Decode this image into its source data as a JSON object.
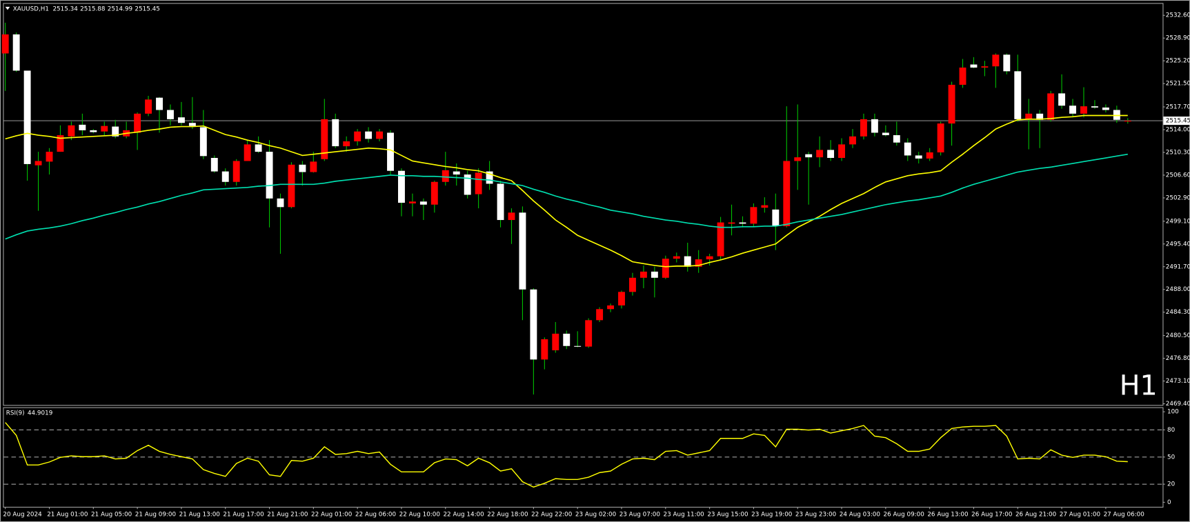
{
  "chart_data": {
    "type": "candlestick",
    "symbol": "XAUUSD,H1",
    "watermark": "H1",
    "watermark_color": "#ff0000",
    "up_color": "#ff0000",
    "down_color": "#ffffff",
    "wick_color": "#00c000",
    "price_line_color": "#b0b0b0",
    "categories": [
      "20 Aug 2024",
      null,
      null,
      null,
      "21 Aug 01:00",
      null,
      null,
      null,
      "21 Aug 05:00",
      null,
      null,
      null,
      "21 Aug 09:00",
      null,
      null,
      null,
      "21 Aug 13:00",
      null,
      null,
      null,
      "21 Aug 17:00",
      null,
      null,
      null,
      "21 Aug 21:00",
      null,
      null,
      null,
      "22 Aug 01:00",
      null,
      null,
      null,
      "22 Aug 06:00",
      null,
      null,
      null,
      "22 Aug 10:00",
      null,
      null,
      null,
      "22 Aug 14:00",
      null,
      null,
      null,
      "22 Aug 18:00",
      null,
      null,
      null,
      "22 Aug 22:00",
      null,
      null,
      null,
      "23 Aug 02:00",
      null,
      null,
      null,
      "23 Aug 07:00",
      null,
      null,
      null,
      "23 Aug 11:00",
      null,
      null,
      null,
      "23 Aug 15:00",
      null,
      null,
      null,
      "23 Aug 19:00",
      null,
      null,
      null,
      "23 Aug 23:00",
      null,
      null,
      null,
      "24 Aug 03:00",
      null,
      null,
      null,
      "26 Aug 09:00",
      null,
      null,
      null,
      "26 Aug 13:00",
      null,
      null,
      null,
      "26 Aug 17:00",
      null,
      null,
      null,
      "26 Aug 21:00",
      null,
      null,
      null,
      "27 Aug 01:00",
      null,
      null,
      null,
      "27 Aug 06:00",
      null,
      null
    ],
    "open": [
      2526.4,
      2529.5,
      2523.6,
      2508.2,
      2508.8,
      2510.4,
      2512.9,
      2514.8,
      2513.9,
      2513.7,
      2514.5,
      2512.9,
      2513.5,
      2516.6,
      2519.2,
      2517.2,
      2516.0,
      2515.1,
      2514.4,
      2509.4,
      2507.2,
      2505.5,
      2508.9,
      2511.6,
      2510.4,
      2502.8,
      2501.4,
      2508.3,
      2507.1,
      2509.2,
      2515.7,
      2511.3,
      2512.1,
      2513.7,
      2512.5,
      2513.5,
      2507.3,
      2502.0,
      2502.3,
      2501.8,
      2505.5,
      2507.2,
      2506.7,
      2503.5,
      2507.2,
      2505.2,
      2499.3,
      2500.5,
      2488.0,
      2476.6,
      2478.1,
      2480.8,
      2478.8,
      2478.7,
      2483.0,
      2484.8,
      2485.4,
      2487.6,
      2489.9,
      2490.9,
      2489.9,
      2493.0,
      2493.4,
      2491.7,
      2492.9,
      2493.4,
      2498.7,
      2498.9,
      2498.7,
      2501.3,
      2501.0,
      2498.3,
      2508.9,
      2510.0,
      2509.5,
      2510.7,
      2509.4,
      2511.6,
      2512.9,
      2515.7,
      2513.5,
      2513.1,
      2511.9,
      2509.8,
      2509.3,
      2510.3,
      2515.0,
      2521.3,
      2524.6,
      2524.1,
      2524.3,
      2526.2,
      2523.5,
      2515.7,
      2516.6,
      2515.6,
      2519.9,
      2517.9,
      2516.6,
      2517.8,
      2517.6,
      2517.2,
      2515.34
    ],
    "high": [
      2531.4,
      2529.8,
      2523.6,
      2510.4,
      2511.0,
      2514.7,
      2515.3,
      2516.6,
      2514.1,
      2515.3,
      2515.6,
      2515.3,
      2516.8,
      2519.5,
      2519.3,
      2518.1,
      2518.5,
      2519.3,
      2517.2,
      2509.8,
      2507.7,
      2509.2,
      2512.3,
      2512.9,
      2512.3,
      2503.6,
      2508.7,
      2508.9,
      2510.4,
      2519.0,
      2516.6,
      2512.9,
      2514.1,
      2514.4,
      2514.1,
      2513.9,
      2507.7,
      2503.6,
      2502.8,
      2505.7,
      2510.4,
      2508.5,
      2507.3,
      2507.7,
      2508.9,
      2505.7,
      2501.2,
      2501.5,
      2488.2,
      2480.2,
      2482.7,
      2481.3,
      2481.2,
      2483.3,
      2485.1,
      2485.7,
      2487.8,
      2490.7,
      2491.9,
      2491.7,
      2493.5,
      2494.0,
      2495.6,
      2494.4,
      2493.8,
      2499.8,
      2501.8,
      2499.9,
      2502.0,
      2503.0,
      2503.6,
      2517.8,
      2518.1,
      2510.4,
      2512.9,
      2512.3,
      2512.6,
      2514.1,
      2516.6,
      2516.6,
      2514.7,
      2515.3,
      2512.6,
      2510.4,
      2511.0,
      2515.3,
      2521.8,
      2525.5,
      2525.8,
      2525.2,
      2526.4,
      2526.4,
      2526.2,
      2519.0,
      2517.2,
      2520.3,
      2523.0,
      2519.0,
      2520.9,
      2518.8,
      2518.1,
      2517.9,
      2515.88
    ],
    "low": [
      2520.3,
      2523.4,
      2505.7,
      2500.8,
      2506.7,
      2510.4,
      2512.3,
      2513.1,
      2513.4,
      2513.1,
      2512.6,
      2512.6,
      2510.7,
      2516.2,
      2513.5,
      2514.7,
      2514.7,
      2514.1,
      2509.2,
      2507.0,
      2504.9,
      2504.9,
      2508.9,
      2510.2,
      2498.1,
      2493.8,
      2501.2,
      2504.9,
      2507.0,
      2508.9,
      2511.0,
      2510.4,
      2511.4,
      2511.9,
      2512.1,
      2506.7,
      2499.9,
      2499.9,
      2499.3,
      2500.5,
      2504.9,
      2504.9,
      2502.8,
      2501.2,
      2504.2,
      2498.1,
      2495.4,
      2483.0,
      2470.9,
      2475.0,
      2477.7,
      2478.3,
      2478.6,
      2478.5,
      2482.7,
      2484.3,
      2484.9,
      2487.0,
      2488.2,
      2486.7,
      2489.7,
      2492.4,
      2490.9,
      2490.7,
      2491.9,
      2492.9,
      2496.8,
      2498.1,
      2498.3,
      2500.5,
      2494.4,
      2498.1,
      2504.2,
      2501.8,
      2507.9,
      2508.9,
      2508.9,
      2511.0,
      2512.4,
      2512.9,
      2512.9,
      2511.4,
      2508.9,
      2508.5,
      2508.9,
      2509.8,
      2511.4,
      2520.8,
      2524.0,
      2522.7,
      2520.8,
      2523.0,
      2515.3,
      2510.8,
      2511.0,
      2515.3,
      2517.4,
      2516.0,
      2516.0,
      2517.4,
      2516.8,
      2515.1,
      2514.99
    ],
    "close": [
      2529.5,
      2523.6,
      2508.4,
      2508.9,
      2510.4,
      2513.1,
      2514.7,
      2513.9,
      2513.6,
      2514.6,
      2512.9,
      2513.9,
      2516.6,
      2518.9,
      2517.2,
      2515.7,
      2515.1,
      2514.6,
      2509.7,
      2507.2,
      2505.5,
      2508.9,
      2511.6,
      2510.4,
      2502.8,
      2501.4,
      2508.3,
      2507.1,
      2508.8,
      2515.7,
      2511.3,
      2512.1,
      2513.7,
      2512.5,
      2513.7,
      2507.3,
      2502.1,
      2502.3,
      2501.8,
      2505.5,
      2507.4,
      2506.7,
      2503.4,
      2507.0,
      2505.2,
      2499.3,
      2500.5,
      2488.0,
      2476.6,
      2479.9,
      2480.8,
      2478.8,
      2478.7,
      2483.0,
      2484.8,
      2485.4,
      2487.6,
      2489.9,
      2490.9,
      2489.9,
      2493.0,
      2493.4,
      2491.7,
      2492.9,
      2493.4,
      2498.9,
      2498.9,
      2498.7,
      2501.4,
      2501.7,
      2498.3,
      2508.9,
      2509.5,
      2509.5,
      2510.7,
      2509.4,
      2511.6,
      2512.9,
      2515.7,
      2513.5,
      2513.1,
      2511.9,
      2509.8,
      2509.3,
      2510.3,
      2515.0,
      2521.3,
      2524.1,
      2524.1,
      2524.3,
      2526.2,
      2523.5,
      2515.7,
      2516.6,
      2515.6,
      2519.9,
      2517.9,
      2516.6,
      2517.8,
      2517.6,
      2517.2,
      2515.6,
      2515.45
    ],
    "moving_averages": [
      {
        "color": "#ffff00",
        "values": [
          2512.5,
          2513.0,
          2513.4,
          2513.1,
          2512.9,
          2512.6,
          2512.7,
          2512.8,
          2512.9,
          2513.0,
          2513.1,
          2513.4,
          2513.6,
          2513.9,
          2514.1,
          2514.4,
          2514.5,
          2514.5,
          2514.6,
          2513.9,
          2513.2,
          2512.8,
          2512.3,
          2511.9,
          2511.4,
          2511.0,
          2510.4,
          2509.8,
          2510.0,
          2510.2,
          2510.4,
          2510.6,
          2510.8,
          2511.0,
          2510.9,
          2510.7,
          2509.8,
          2508.9,
          2508.6,
          2508.3,
          2508.0,
          2507.8,
          2507.5,
          2507.3,
          2506.8,
          2506.2,
          2505.7,
          2504.1,
          2502.4,
          2500.9,
          2499.3,
          2498.1,
          2496.8,
          2496.0,
          2495.2,
          2494.4,
          2493.5,
          2492.5,
          2492.2,
          2491.9,
          2491.7,
          2491.8,
          2491.8,
          2491.9,
          2492.4,
          2492.8,
          2493.3,
          2493.9,
          2494.4,
          2494.9,
          2495.4,
          2496.8,
          2498.1,
          2499.0,
          2499.9,
          2501.0,
          2502.0,
          2502.8,
          2503.6,
          2504.6,
          2505.5,
          2506.0,
          2506.5,
          2506.8,
          2507.0,
          2507.3,
          2508.7,
          2510.0,
          2511.4,
          2512.7,
          2514.1,
          2514.9,
          2515.6,
          2515.7,
          2515.7,
          2515.8,
          2516.0,
          2516.1,
          2516.3,
          2516.3,
          2516.3,
          2516.3,
          2516.3
        ]
      },
      {
        "color": "#00e0b0",
        "values": [
          2496.2,
          2496.9,
          2497.5,
          2497.8,
          2498.0,
          2498.3,
          2498.7,
          2499.2,
          2499.6,
          2500.1,
          2500.5,
          2501.0,
          2501.4,
          2501.9,
          2502.3,
          2502.8,
          2503.3,
          2503.7,
          2504.2,
          2504.3,
          2504.4,
          2504.5,
          2504.6,
          2504.8,
          2504.9,
          2505.1,
          2505.1,
          2505.1,
          2505.1,
          2505.3,
          2505.6,
          2505.8,
          2506.0,
          2506.2,
          2506.4,
          2506.6,
          2506.5,
          2506.5,
          2506.4,
          2506.4,
          2506.3,
          2506.2,
          2506.1,
          2505.9,
          2505.8,
          2505.5,
          2505.2,
          2504.9,
          2504.3,
          2503.8,
          2503.2,
          2502.7,
          2502.3,
          2501.8,
          2501.4,
          2500.9,
          2500.6,
          2500.3,
          2499.9,
          2499.6,
          2499.3,
          2499.1,
          2498.8,
          2498.6,
          2498.3,
          2498.1,
          2498.1,
          2498.2,
          2498.2,
          2498.3,
          2498.3,
          2498.6,
          2499.0,
          2499.3,
          2499.6,
          2499.9,
          2500.2,
          2500.6,
          2501.0,
          2501.4,
          2501.8,
          2502.1,
          2502.4,
          2502.6,
          2502.9,
          2503.2,
          2503.8,
          2504.5,
          2505.1,
          2505.6,
          2506.1,
          2506.6,
          2507.1,
          2507.4,
          2507.7,
          2507.9,
          2508.2,
          2508.5,
          2508.8,
          2509.1,
          2509.4,
          2509.7,
          2510.0
        ]
      }
    ],
    "ylim": [
      2469.2,
      2534.6
    ],
    "yticks": [
      {
        "value": 2532.6,
        "label": "2532.60"
      },
      {
        "value": 2528.9,
        "label": "2528.90"
      },
      {
        "value": 2525.2,
        "label": "2525.20"
      },
      {
        "value": 2521.5,
        "label": "2521.50"
      },
      {
        "value": 2517.7,
        "label": "2517.70"
      },
      {
        "value": 2514.0,
        "label": "2514.00"
      },
      {
        "value": 2510.3,
        "label": "2510.30"
      },
      {
        "value": 2506.6,
        "label": "2506.60"
      },
      {
        "value": 2502.9,
        "label": "2502.90"
      },
      {
        "value": 2499.1,
        "label": "2499.10"
      },
      {
        "value": 2495.4,
        "label": "2495.40"
      },
      {
        "value": 2491.7,
        "label": "2491.70"
      },
      {
        "value": 2488.0,
        "label": "2488.00"
      },
      {
        "value": 2484.3,
        "label": "2484.30"
      },
      {
        "value": 2480.5,
        "label": "2480.50"
      },
      {
        "value": 2476.8,
        "label": "2476.80"
      },
      {
        "value": 2473.1,
        "label": "2473.10"
      },
      {
        "value": 2469.4,
        "label": "2469.40"
      }
    ],
    "rsi": {
      "title": "RSI(9)",
      "color": "#ffff00",
      "level_color": "#a0a0a0",
      "ylim": [
        -5,
        105
      ],
      "yticks": [
        100,
        80,
        50,
        20,
        0
      ],
      "levels": [
        80,
        50,
        20
      ],
      "values": [
        88.2,
        73.9,
        41.2,
        41.2,
        44.5,
        49.6,
        51.3,
        50.4,
        50.4,
        51.3,
        47.9,
        48.7,
        57.1,
        63.0,
        56.3,
        52.9,
        50.4,
        47.9,
        36.1,
        31.9,
        28.6,
        42.9,
        48.7,
        45.4,
        30.3,
        28.6,
        46.2,
        45.4,
        48.7,
        61.3,
        52.9,
        53.8,
        56.3,
        53.8,
        55.5,
        42.0,
        33.6,
        33.6,
        33.6,
        43.7,
        47.9,
        47.1,
        40.3,
        48.7,
        43.7,
        34.5,
        37.0,
        22.7,
        16.8,
        21.0,
        26.1,
        25.2,
        25.2,
        27.7,
        32.8,
        34.5,
        42.0,
        47.9,
        48.7,
        47.1,
        56.3,
        57.1,
        52.1,
        54.6,
        57.1,
        70.6,
        70.6,
        70.6,
        75.6,
        73.9,
        61.3,
        80.7,
        80.7,
        79.8,
        80.7,
        76.5,
        79.0,
        81.5,
        84.9,
        73.1,
        71.4,
        64.7,
        56.3,
        56.3,
        58.8,
        71.4,
        81.5,
        83.2,
        84.0,
        84.0,
        84.9,
        73.1,
        47.9,
        48.7,
        47.9,
        58.0,
        52.1,
        49.6,
        52.1,
        52.1,
        50.4,
        45.4,
        44.9019
      ]
    }
  }
}
